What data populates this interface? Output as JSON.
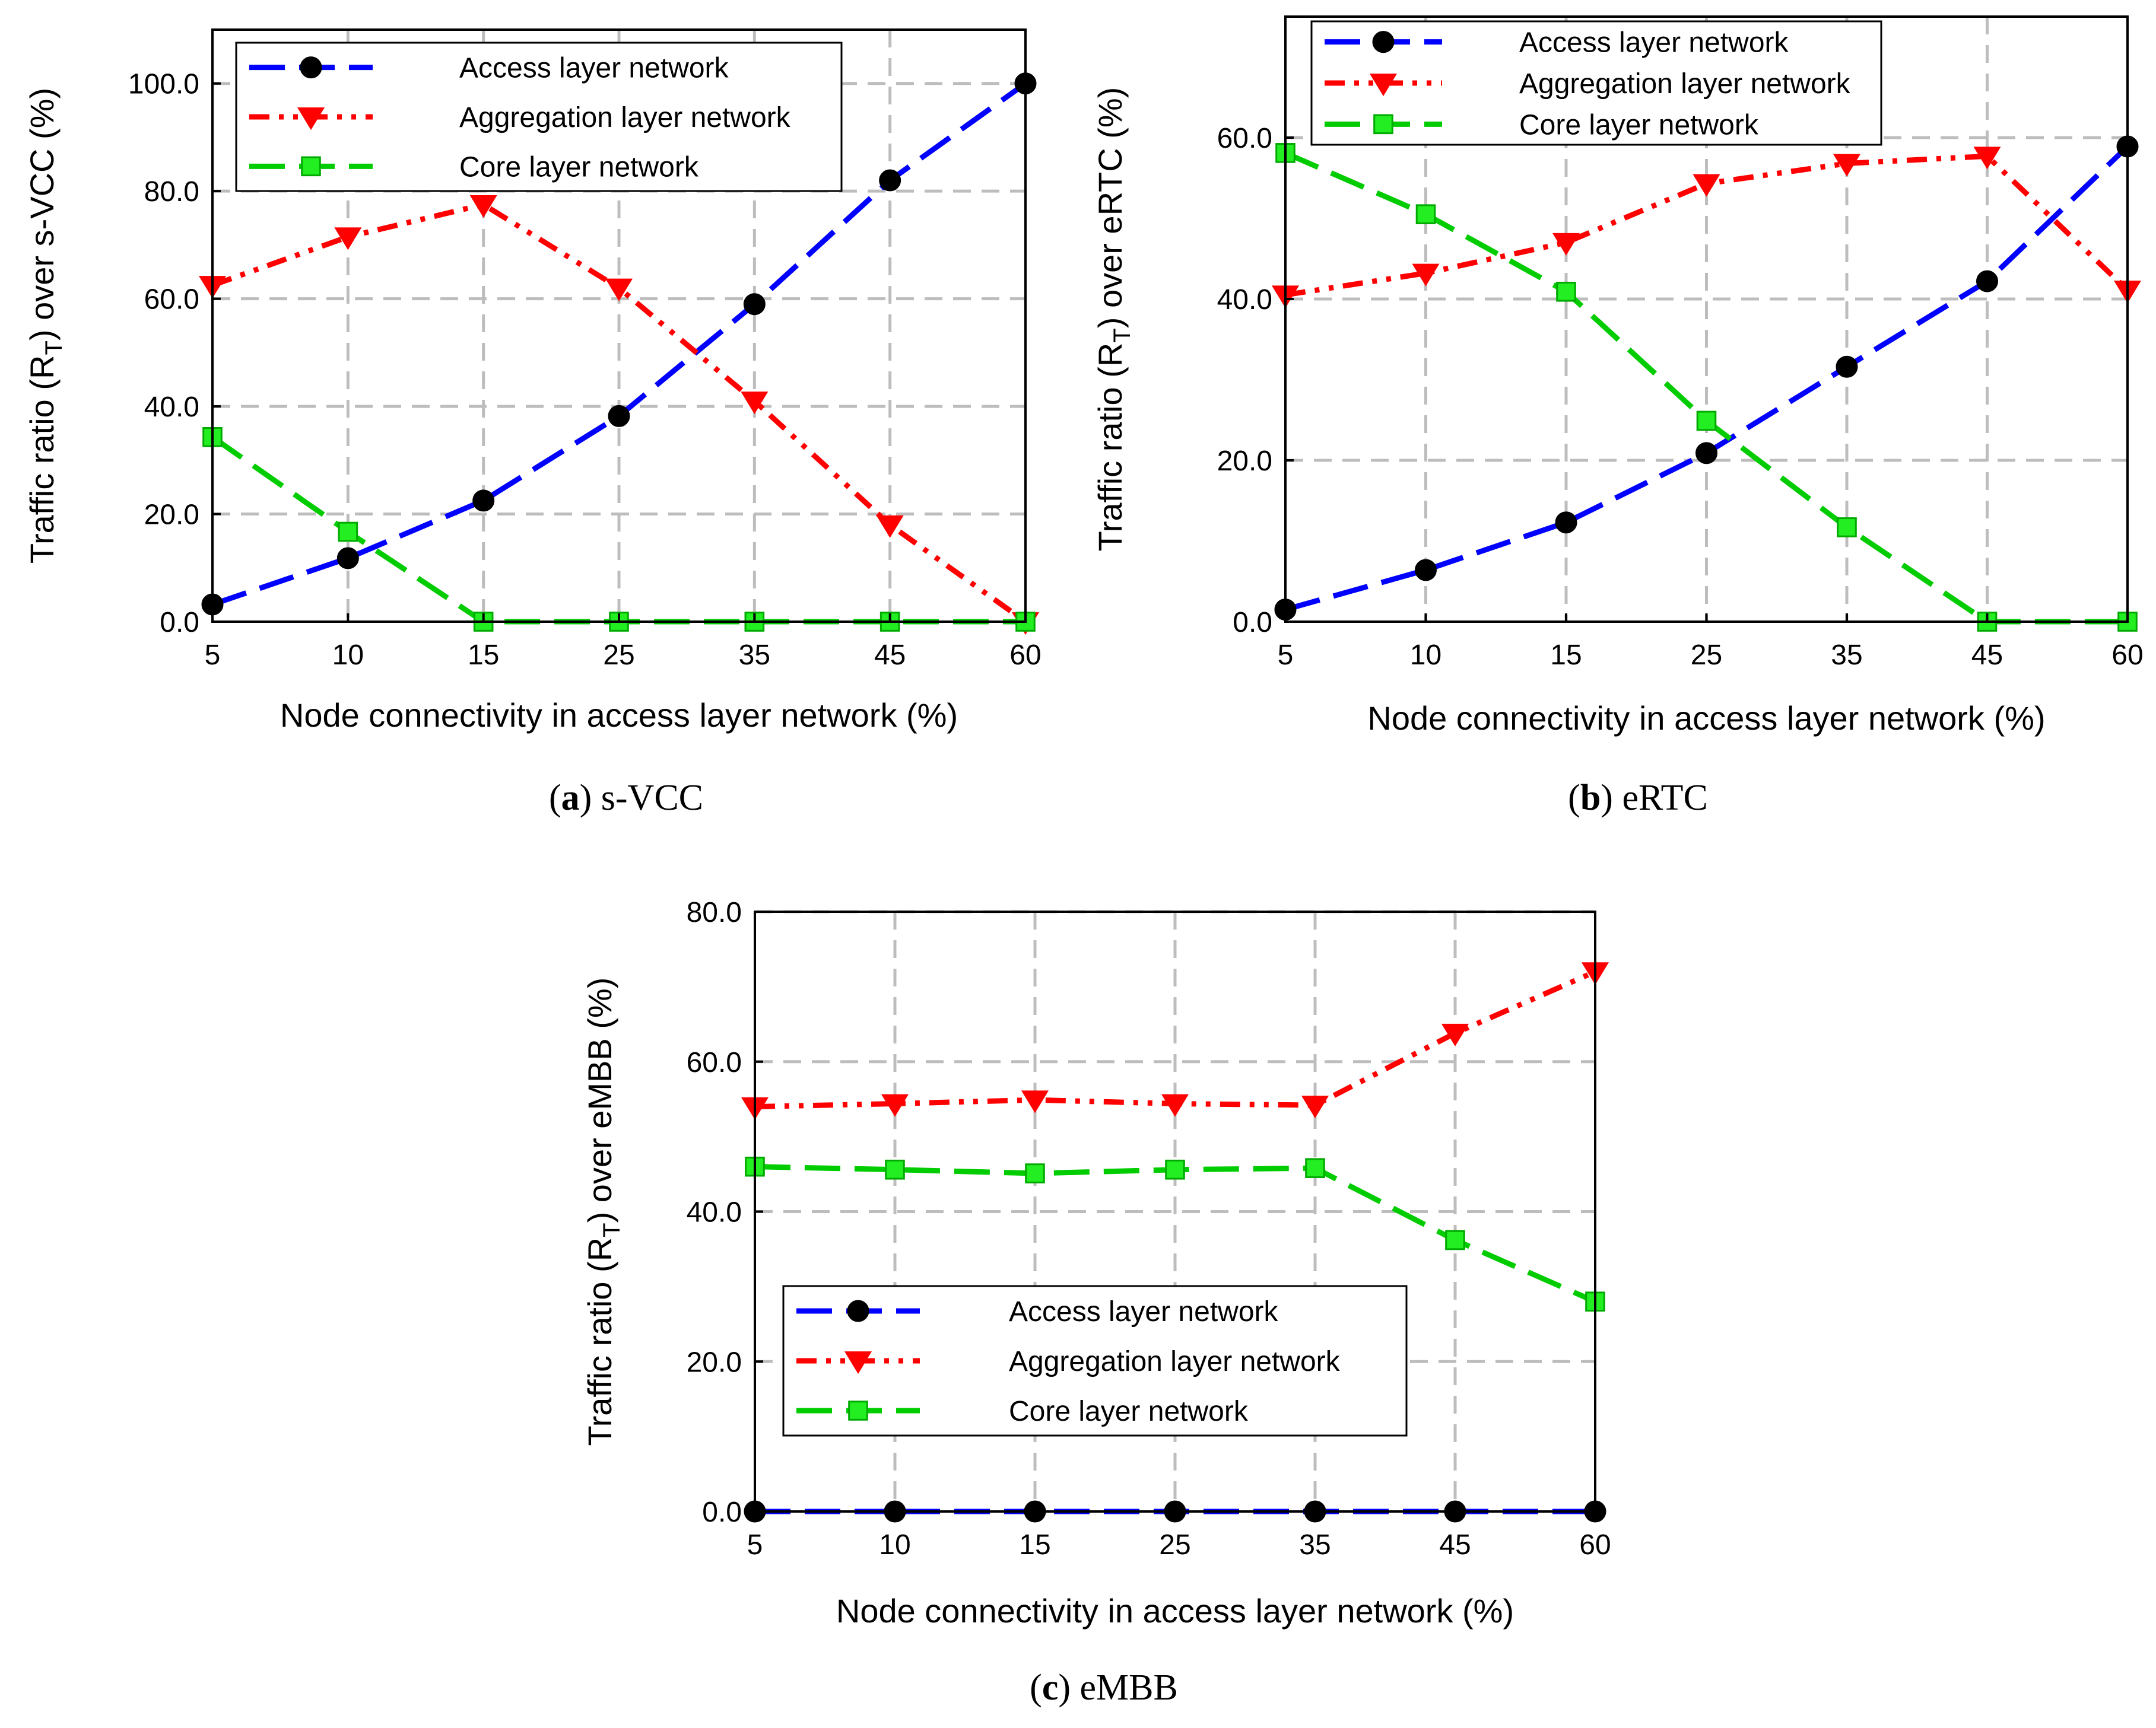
{
  "chart_data": [
    {
      "type": "line",
      "id": "a",
      "title": "",
      "caption": {
        "label": "a",
        "text": " s-VCC"
      },
      "categories": [
        "5",
        "10",
        "15",
        "25",
        "35",
        "45",
        "60"
      ],
      "xlabel": "Node connectivity in access layer network (%)",
      "ylabel": {
        "prefix": "Traffic ratio (R",
        "subscript": "T",
        "suffix": ") over s-VCC (%)"
      },
      "ylim": [
        0,
        110
      ],
      "yticks": [
        0,
        20,
        40,
        60,
        80,
        100
      ],
      "ytick_labels": [
        "0.0",
        "20.0",
        "40.0",
        "60.0",
        "80.0",
        "100.0"
      ],
      "legend_position": "top-left",
      "grid": true,
      "series": [
        {
          "name": "Access layer network",
          "color": "#0000ff",
          "marker": "circle",
          "dash": "dashed",
          "values": [
            3.2,
            11.8,
            22.5,
            38.2,
            59.0,
            82.0,
            100.0
          ]
        },
        {
          "name": "Aggregation layer network",
          "color": "#ff0000",
          "marker": "triangle-down",
          "dash": "dash-dot-dot",
          "values": [
            62.5,
            71.5,
            77.5,
            62.0,
            41.0,
            18.0,
            0.0
          ]
        },
        {
          "name": "Core layer network",
          "color": "#00cc00",
          "marker": "square",
          "dash": "dashed",
          "values": [
            34.3,
            16.7,
            0.0,
            0.0,
            0.0,
            0.0,
            0.0
          ]
        }
      ]
    },
    {
      "type": "line",
      "id": "b",
      "title": "",
      "caption": {
        "label": "b",
        "text": " eRTC"
      },
      "categories": [
        "5",
        "10",
        "15",
        "25",
        "35",
        "45",
        "60"
      ],
      "xlabel": "Node connectivity in access layer network (%)",
      "ylabel": {
        "prefix": "Traffic ratio (R",
        "subscript": "T",
        "suffix": ") over eRTC (%)"
      },
      "ylim": [
        0,
        75
      ],
      "yticks": [
        0,
        20,
        40,
        60
      ],
      "ytick_labels": [
        "0.0",
        "20.0",
        "40.0",
        "60.0"
      ],
      "legend_position": "top-left",
      "grid": true,
      "series": [
        {
          "name": "Access layer network",
          "color": "#0000ff",
          "marker": "circle",
          "dash": "dashed",
          "values": [
            1.5,
            6.4,
            12.3,
            20.9,
            31.6,
            42.2,
            58.9
          ]
        },
        {
          "name": "Aggregation layer network",
          "color": "#ff0000",
          "marker": "triangle-down",
          "dash": "dash-dot-dot",
          "values": [
            40.5,
            43.2,
            47.0,
            54.3,
            56.8,
            57.7,
            41.1
          ]
        },
        {
          "name": "Core layer network",
          "color": "#00cc00",
          "marker": "square",
          "dash": "dashed",
          "values": [
            58.1,
            50.5,
            40.9,
            24.9,
            11.7,
            0.0,
            0.0
          ]
        }
      ]
    },
    {
      "type": "line",
      "id": "c",
      "title": "",
      "caption": {
        "label": "c",
        "text": " eMBB"
      },
      "categories": [
        "5",
        "10",
        "15",
        "25",
        "35",
        "45",
        "60"
      ],
      "xlabel": "Node connectivity in access layer network (%)",
      "ylabel": {
        "prefix": "Traffic ratio (R",
        "subscript": "T",
        "suffix": ") over eMBB (%)"
      },
      "ylim": [
        0,
        80
      ],
      "yticks": [
        0,
        20,
        40,
        60,
        80
      ],
      "ytick_labels": [
        "0.0",
        "20.0",
        "40.0",
        "60.0",
        "80.0"
      ],
      "legend_position": "lower-left",
      "grid": true,
      "series": [
        {
          "name": "Access layer network",
          "color": "#0000ff",
          "marker": "circle",
          "dash": "dashed",
          "values": [
            0.0,
            0.0,
            0.0,
            0.0,
            0.0,
            0.0,
            0.0
          ]
        },
        {
          "name": "Aggregation layer network",
          "color": "#ff0000",
          "marker": "triangle-down",
          "dash": "dash-dot-dot",
          "values": [
            54.0,
            54.4,
            54.9,
            54.4,
            54.2,
            63.8,
            72.0
          ]
        },
        {
          "name": "Core layer network",
          "color": "#00cc00",
          "marker": "square",
          "dash": "dashed",
          "values": [
            46.0,
            45.6,
            45.1,
            45.6,
            45.8,
            36.2,
            28.0
          ]
        }
      ]
    }
  ]
}
